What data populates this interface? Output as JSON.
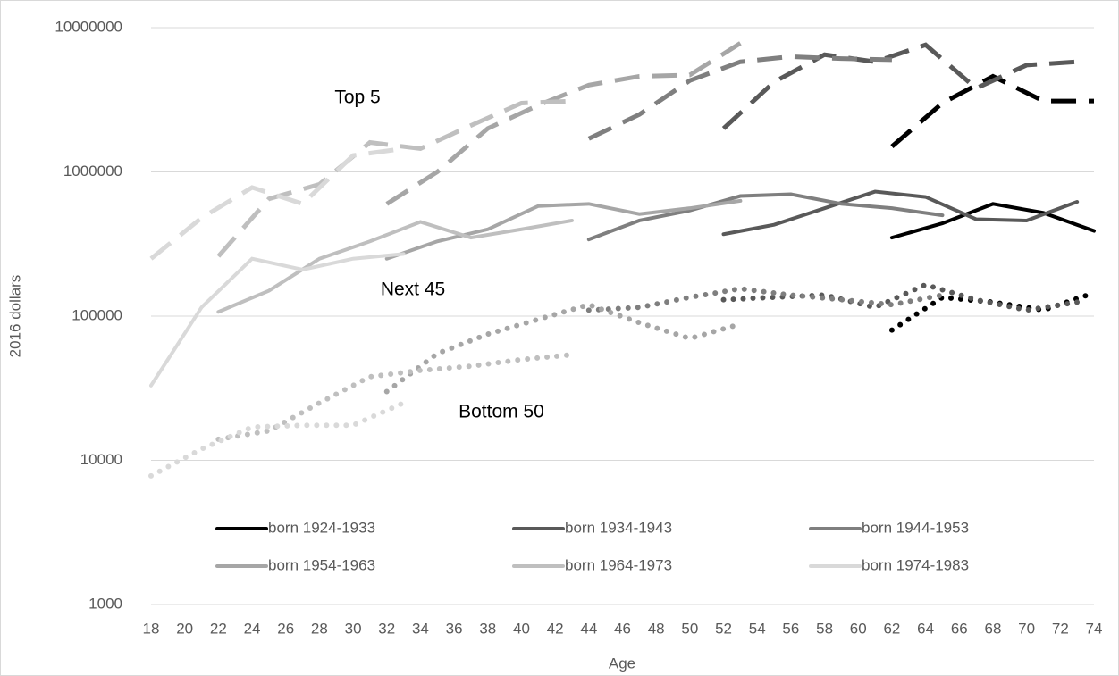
{
  "chart_data": {
    "type": "line",
    "log_scale": true,
    "grid": true,
    "legend": "bottom",
    "x_label": "Age",
    "y_label": "2016 dollars",
    "xlim": [
      18,
      74
    ],
    "xticks": [
      18,
      20,
      22,
      24,
      26,
      28,
      30,
      32,
      34,
      36,
      38,
      40,
      42,
      44,
      46,
      48,
      50,
      52,
      54,
      56,
      58,
      60,
      62,
      64,
      66,
      68,
      70,
      72,
      74
    ],
    "ylim": [
      1000,
      10000000
    ],
    "yticks": [
      1000,
      10000,
      100000,
      1000000,
      10000000
    ],
    "annotations": [
      {
        "text": "Top 5",
        "line": "dashed"
      },
      {
        "text": "Next 45",
        "line": "solid"
      },
      {
        "text": "Bottom 50",
        "line": "dotted"
      }
    ],
    "series": [
      {
        "name": "born 1924-1933",
        "color": "#000000",
        "x": [
          62,
          65,
          68,
          71,
          74
        ],
        "values": [
          [
            1500000,
            3000000,
            4600000,
            3100000,
            3100000
          ],
          [
            350000,
            440000,
            600000,
            520000,
            390000
          ],
          [
            80000,
            135000,
            125000,
            110000,
            145000
          ]
        ]
      },
      {
        "name": "born 1934-1943",
        "color": "#595959",
        "x": [
          52,
          55,
          58,
          61,
          64,
          67,
          70,
          73
        ],
        "values": [
          [
            2000000,
            4200000,
            6500000,
            5800000,
            7600000,
            3800000,
            5500000,
            5800000
          ],
          [
            370000,
            430000,
            560000,
            730000,
            670000,
            470000,
            460000,
            620000
          ],
          [
            130000,
            135000,
            140000,
            115000,
            165000,
            130000,
            110000,
            125000
          ]
        ]
      },
      {
        "name": "born 1944-1953",
        "color": "#7f7f7f",
        "x": [
          44,
          47,
          50,
          53,
          56,
          59,
          62,
          65,
          68,
          71
        ],
        "values": [
          [
            1700000,
            2500000,
            4300000,
            5800000,
            6300000,
            6100000,
            6000000,
            null,
            null,
            null
          ],
          [
            340000,
            460000,
            540000,
            680000,
            700000,
            600000,
            560000,
            500000,
            null,
            null
          ],
          [
            110000,
            115000,
            135000,
            155000,
            140000,
            130000,
            120000,
            140000,
            null,
            null
          ]
        ]
      },
      {
        "name": "born 1954-1963",
        "color": "#a6a6a6",
        "x": [
          32,
          35,
          38,
          41,
          44,
          47,
          50,
          53
        ],
        "values": [
          [
            600000,
            1000000,
            2000000,
            2900000,
            4000000,
            4600000,
            4700000,
            7800000
          ],
          [
            250000,
            330000,
            400000,
            580000,
            600000,
            510000,
            560000,
            630000
          ],
          [
            30000,
            55000,
            75000,
            95000,
            120000,
            90000,
            70000,
            88000
          ]
        ]
      },
      {
        "name": "born 1964-1973",
        "color": "#bfbfbf",
        "x": [
          22,
          25,
          28,
          31,
          34,
          37,
          40,
          43
        ],
        "values": [
          [
            260000,
            650000,
            820000,
            1600000,
            1450000,
            2100000,
            3000000,
            3100000
          ],
          [
            107000,
            150000,
            250000,
            330000,
            450000,
            350000,
            400000,
            460000
          ],
          [
            14000,
            16000,
            25000,
            38000,
            42000,
            45000,
            50000,
            54000
          ]
        ]
      },
      {
        "name": "born 1974-1983",
        "color": "#d9d9d9",
        "x": [
          18,
          21,
          24,
          27,
          30,
          33
        ],
        "values": [
          [
            250000,
            480000,
            780000,
            600000,
            1300000,
            1450000
          ],
          [
            33000,
            115000,
            250000,
            210000,
            250000,
            270000
          ],
          [
            7800,
            12000,
            17000,
            17500,
            17500,
            25000
          ]
        ]
      }
    ]
  }
}
